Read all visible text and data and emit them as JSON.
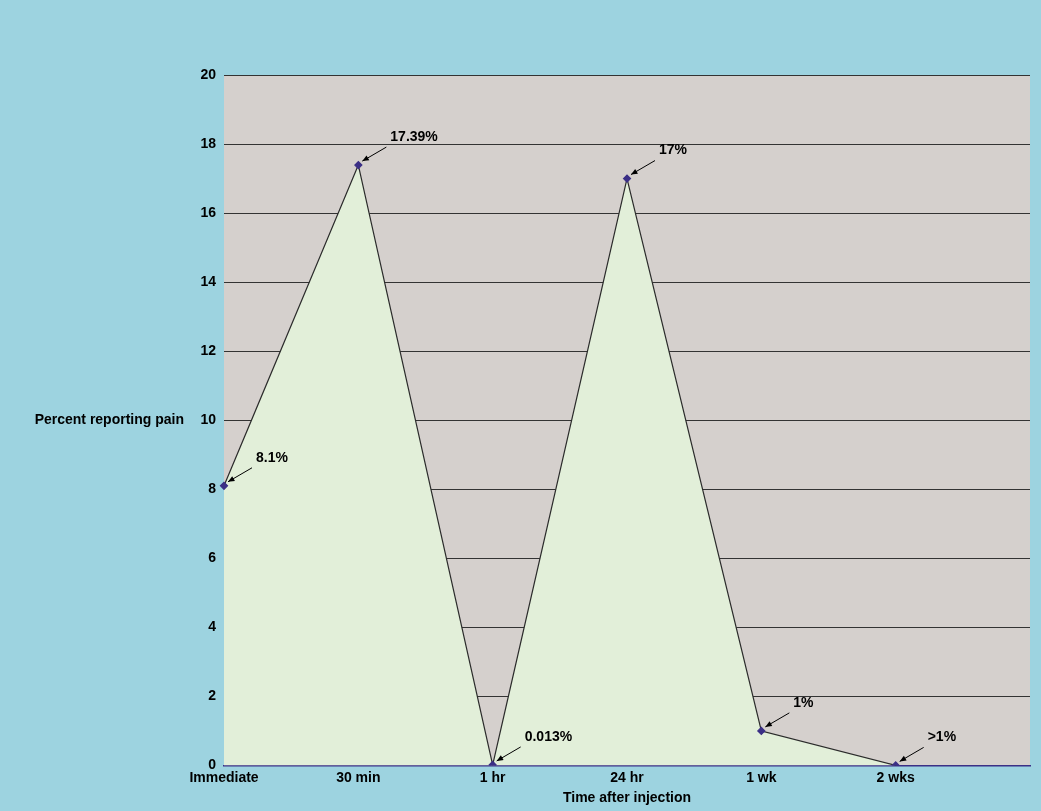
{
  "chart_data": {
    "type": "area",
    "xlabel": "Time after injection",
    "ylabel": "Percent reporting pain",
    "categories": [
      "Immediate",
      "30 min",
      "1 hr",
      "24 hr",
      "1 wk",
      "2 wks",
      null
    ],
    "series": [
      {
        "color": "#e2efd9",
        "values": [
          8.1,
          17.39,
          0.013,
          17,
          1,
          0,
          null
        ],
        "value_labels": [
          "8.1%",
          "17.39%",
          "0.013%",
          "17%",
          "1%",
          ">1%",
          null
        ]
      }
    ],
    "ylim": [
      0,
      20
    ],
    "yticks": [
      0,
      2,
      4,
      6,
      8,
      10,
      12,
      14,
      16,
      18,
      20
    ],
    "grid": "y",
    "marker": "diamond",
    "legend": false
  }
}
